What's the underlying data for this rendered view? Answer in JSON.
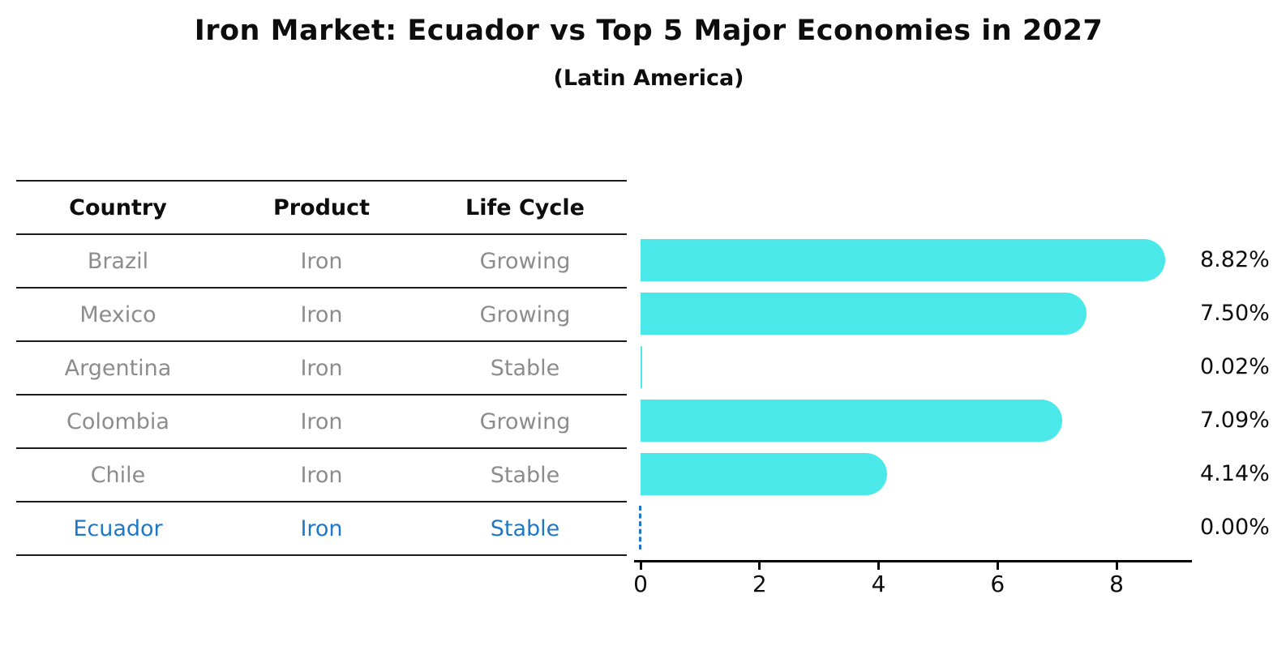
{
  "title": "Iron Market: Ecuador vs Top 5 Major Economies in 2027",
  "subtitle": "(Latin America)",
  "table": {
    "headers": [
      "Country",
      "Product",
      "Life Cycle"
    ],
    "rows": [
      {
        "country": "Brazil",
        "product": "Iron",
        "life_cycle": "Growing",
        "highlight": false
      },
      {
        "country": "Mexico",
        "product": "Iron",
        "life_cycle": "Growing",
        "highlight": false
      },
      {
        "country": "Argentina",
        "product": "Iron",
        "life_cycle": "Stable",
        "highlight": false
      },
      {
        "country": "Colombia",
        "product": "Iron",
        "life_cycle": "Growing",
        "highlight": false
      },
      {
        "country": "Chile",
        "product": "Iron",
        "life_cycle": "Stable",
        "highlight": false
      },
      {
        "country": "Ecuador",
        "product": "Iron",
        "life_cycle": "Stable",
        "highlight": true
      }
    ]
  },
  "chart_data": {
    "type": "bar",
    "orientation": "horizontal",
    "title": "Iron Market: Ecuador vs Top 5 Major Economies in 2027",
    "subtitle": "(Latin America)",
    "categories": [
      "Brazil",
      "Mexico",
      "Argentina",
      "Colombia",
      "Chile",
      "Ecuador"
    ],
    "values": [
      8.82,
      7.5,
      0.02,
      7.09,
      4.14,
      0.0
    ],
    "value_labels": [
      "8.82%",
      "7.50%",
      "0.02%",
      "7.09%",
      "4.14%",
      "0.00%"
    ],
    "x_ticks": [
      0,
      2,
      4,
      6,
      8
    ],
    "xlim": [
      -0.11,
      9.27
    ],
    "xlabel": "",
    "ylabel": "",
    "grid": false,
    "legend": false,
    "bar_color": "#4AE8E8",
    "highlight_color": "#1E78C8",
    "highlight_index": 5,
    "highlight_style": "dashed-zero-line"
  },
  "colors": {
    "bar_cyan": "#4AE8E8",
    "accent_blue": "#1E78C8",
    "muted_text": "#8C8C8C",
    "text": "#0D0D0D"
  }
}
